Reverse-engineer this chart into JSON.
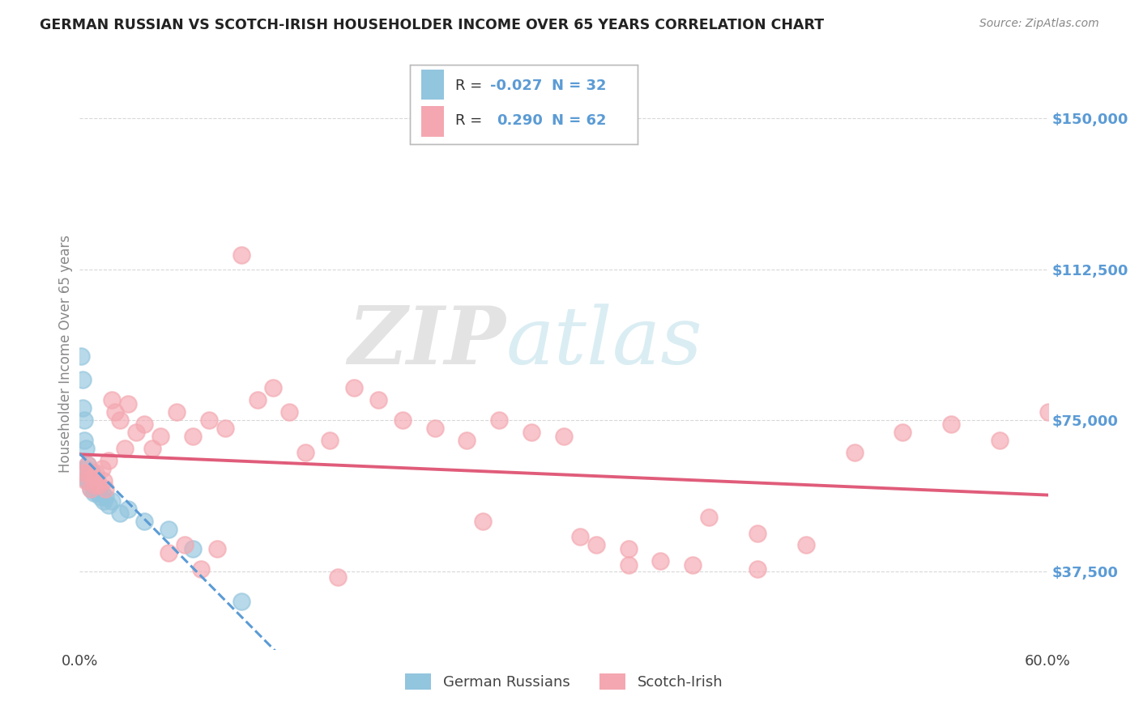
{
  "title": "GERMAN RUSSIAN VS SCOTCH-IRISH HOUSEHOLDER INCOME OVER 65 YEARS CORRELATION CHART",
  "source": "Source: ZipAtlas.com",
  "ylabel": "Householder Income Over 65 years",
  "xlim": [
    0.0,
    0.6
  ],
  "ylim": [
    18000,
    165000
  ],
  "yticks": [
    37500,
    75000,
    112500,
    150000
  ],
  "ytick_labels": [
    "$37,500",
    "$75,000",
    "$112,500",
    "$150,000"
  ],
  "xticks": [
    0.0,
    0.6
  ],
  "xtick_labels": [
    "0.0%",
    "60.0%"
  ],
  "background_color": "#ffffff",
  "grid_color": "#d8d8d8",
  "watermark_zip": "ZIP",
  "watermark_atlas": "atlas",
  "color_blue": "#92c5de",
  "color_pink": "#f4a7b0",
  "line_color_blue": "#5b9bd5",
  "line_color_pink": "#e05c7a",
  "label_blue": "German Russians",
  "label_pink": "Scotch-Irish",
  "gr_x": [
    0.001,
    0.002,
    0.002,
    0.003,
    0.003,
    0.004,
    0.004,
    0.005,
    0.005,
    0.006,
    0.006,
    0.007,
    0.007,
    0.008,
    0.008,
    0.009,
    0.009,
    0.01,
    0.011,
    0.012,
    0.013,
    0.014,
    0.015,
    0.016,
    0.018,
    0.02,
    0.025,
    0.03,
    0.04,
    0.055,
    0.07,
    0.1
  ],
  "gr_y": [
    91000,
    85000,
    78000,
    75000,
    70000,
    68000,
    63000,
    64000,
    60000,
    62000,
    60000,
    61000,
    58000,
    62000,
    59000,
    60000,
    57000,
    59000,
    57000,
    58000,
    56000,
    57000,
    55000,
    56000,
    54000,
    55000,
    52000,
    53000,
    50000,
    48000,
    43000,
    30000
  ],
  "si_x": [
    0.003,
    0.004,
    0.005,
    0.006,
    0.007,
    0.008,
    0.009,
    0.01,
    0.011,
    0.012,
    0.014,
    0.015,
    0.016,
    0.018,
    0.02,
    0.022,
    0.025,
    0.028,
    0.03,
    0.035,
    0.04,
    0.045,
    0.05,
    0.06,
    0.07,
    0.08,
    0.09,
    0.1,
    0.11,
    0.12,
    0.13,
    0.14,
    0.155,
    0.17,
    0.185,
    0.2,
    0.22,
    0.24,
    0.26,
    0.28,
    0.3,
    0.32,
    0.34,
    0.36,
    0.39,
    0.42,
    0.45,
    0.48,
    0.51,
    0.54,
    0.57,
    0.6,
    0.25,
    0.38,
    0.31,
    0.16,
    0.055,
    0.065,
    0.075,
    0.085,
    0.34,
    0.42
  ],
  "si_y": [
    62000,
    60000,
    64000,
    62000,
    58000,
    61000,
    59000,
    62000,
    60000,
    59000,
    63000,
    60000,
    58000,
    65000,
    80000,
    77000,
    75000,
    68000,
    79000,
    72000,
    74000,
    68000,
    71000,
    77000,
    71000,
    75000,
    73000,
    116000,
    80000,
    83000,
    77000,
    67000,
    70000,
    83000,
    80000,
    75000,
    73000,
    70000,
    75000,
    72000,
    71000,
    44000,
    43000,
    40000,
    51000,
    47000,
    44000,
    67000,
    72000,
    74000,
    70000,
    77000,
    50000,
    39000,
    46000,
    36000,
    42000,
    44000,
    38000,
    43000,
    39000,
    38000
  ]
}
